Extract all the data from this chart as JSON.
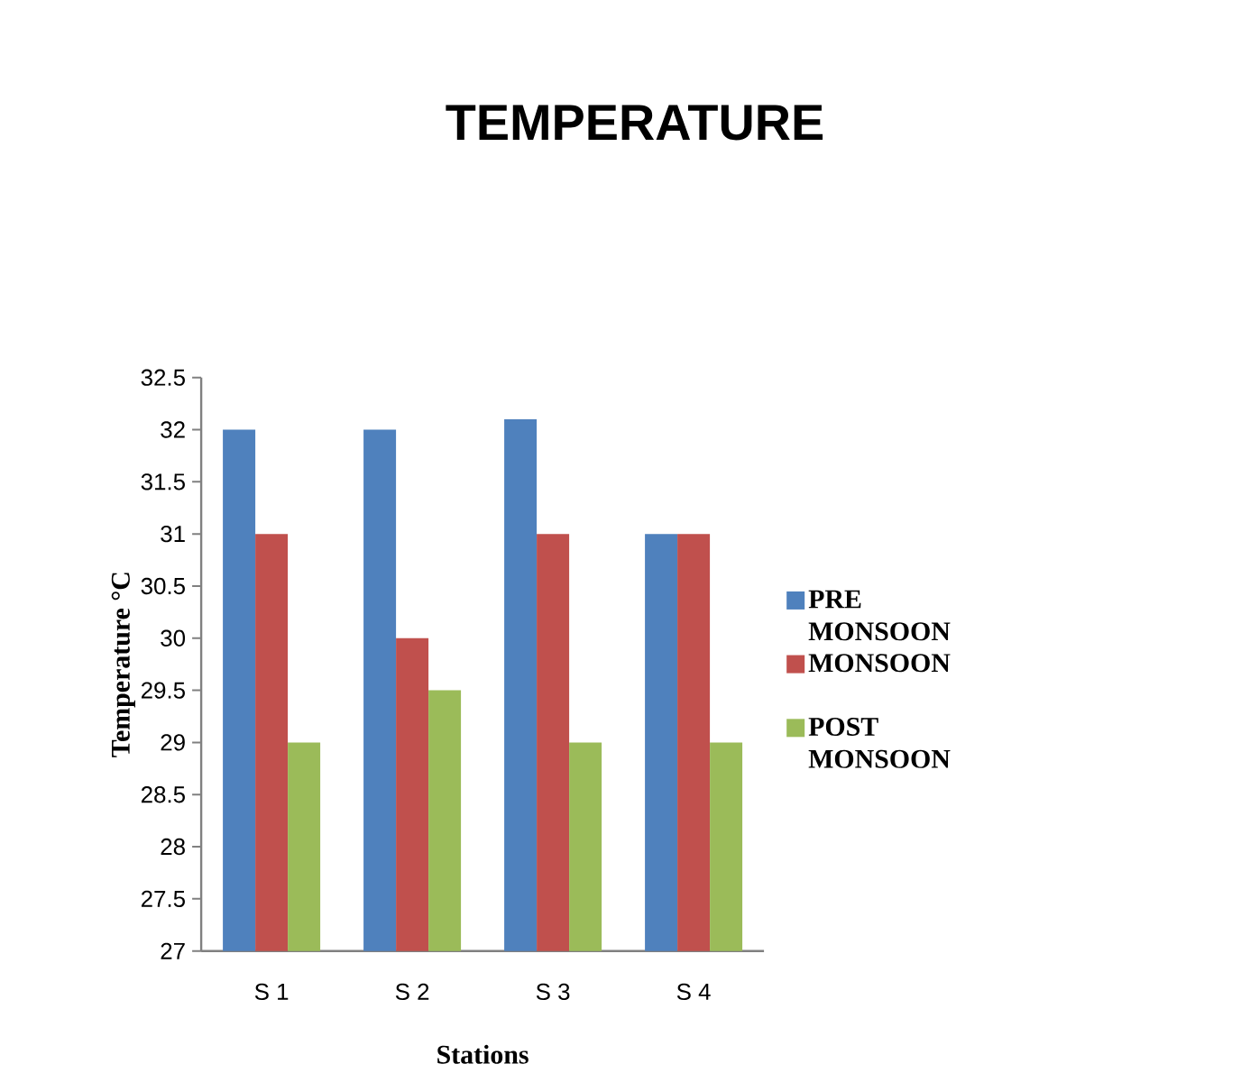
{
  "chart_data": {
    "type": "bar",
    "title": "TEMPERATURE",
    "xlabel": "Stations",
    "ylabel": "Temperature °C",
    "categories": [
      "S 1",
      "S 2",
      "S 3",
      "S 4"
    ],
    "series": [
      {
        "name": "PRE MONSOON",
        "color": "#4f81bd",
        "values": [
          32,
          32,
          32.1,
          31
        ]
      },
      {
        "name": "MONSOON",
        "color": "#c0504d",
        "values": [
          31,
          30,
          31,
          31
        ]
      },
      {
        "name": "POST MONSOON",
        "color": "#9bbb59",
        "values": [
          29,
          29.5,
          29,
          29
        ]
      }
    ],
    "ylim": [
      27,
      32.5
    ],
    "yticks": [
      27,
      27.5,
      28,
      28.5,
      29,
      29.5,
      30,
      30.5,
      31,
      31.5,
      32,
      32.5
    ],
    "grid": false,
    "legend": "right"
  }
}
